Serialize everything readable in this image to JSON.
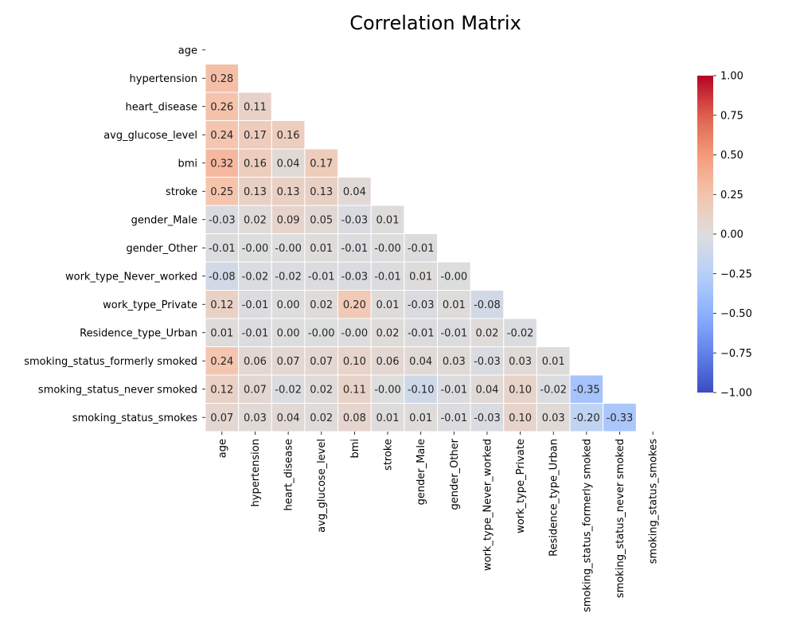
{
  "chart_data": {
    "type": "heatmap",
    "title": "Correlation Matrix",
    "variables": [
      "age",
      "hypertension",
      "heart_disease",
      "avg_glucose_level",
      "bmi",
      "stroke",
      "gender_Male",
      "gender_Other",
      "work_type_Never_worked",
      "work_type_Private",
      "Residence_type_Urban",
      "smoking_status_formerly smoked",
      "smoking_status_never smoked",
      "smoking_status_smokes"
    ],
    "lower_triangle": [
      [],
      [
        0.28
      ],
      [
        0.26,
        0.11
      ],
      [
        0.24,
        0.17,
        0.16
      ],
      [
        0.32,
        0.16,
        0.04,
        0.17
      ],
      [
        0.25,
        0.13,
        0.13,
        0.13,
        0.04
      ],
      [
        -0.03,
        0.02,
        0.09,
        0.05,
        -0.03,
        0.01
      ],
      [
        -0.01,
        -0.004,
        -0.003,
        0.01,
        -0.01,
        -0.002,
        -0.01
      ],
      [
        -0.08,
        -0.02,
        -0.02,
        -0.01,
        -0.03,
        -0.01,
        0.01,
        -0.004
      ],
      [
        0.12,
        -0.01,
        0.0,
        0.02,
        0.2,
        0.01,
        -0.03,
        0.01,
        -0.08
      ],
      [
        0.01,
        -0.01,
        0.0,
        -0.004,
        -0.003,
        0.02,
        -0.01,
        -0.01,
        0.02,
        -0.02
      ],
      [
        0.24,
        0.06,
        0.07,
        0.07,
        0.1,
        0.06,
        0.04,
        0.03,
        -0.03,
        0.03,
        0.01
      ],
      [
        0.12,
        0.07,
        -0.02,
        0.02,
        0.11,
        -0.004,
        -0.1,
        -0.01,
        0.04,
        0.1,
        -0.02,
        -0.35
      ],
      [
        0.07,
        0.03,
        0.04,
        0.02,
        0.08,
        0.01,
        0.01,
        -0.01,
        -0.03,
        0.1,
        0.03,
        -0.2,
        -0.33
      ]
    ],
    "value_format": "0.00",
    "colormap": "coolwarm",
    "vmin": -1.0,
    "vmax": 1.0,
    "mask": "upper triangle including diagonal",
    "colorbar": {
      "ticks": [
        1.0,
        0.75,
        0.5,
        0.25,
        0.0,
        -0.25,
        -0.5,
        -0.75,
        -1.0
      ],
      "tick_labels": [
        "1.00",
        "0.75",
        "0.50",
        "0.25",
        "0.00",
        "−0.25",
        "−0.50",
        "−0.75",
        "−1.00"
      ]
    }
  }
}
